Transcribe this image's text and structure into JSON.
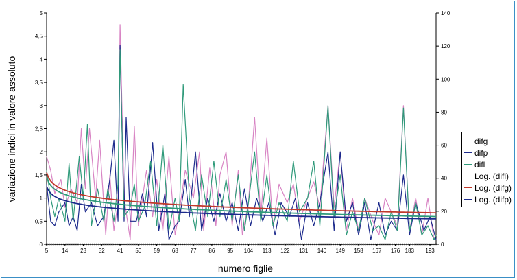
{
  "chart_data": {
    "type": "line",
    "title": "",
    "xlabel": "numero figlie",
    "ylabel": "variazione indici in valore assoluto",
    "x_range": [
      5,
      196
    ],
    "x_ticks": [
      "5",
      "14",
      "23",
      "32",
      "41",
      "50",
      "59",
      "68",
      "77",
      "86",
      "95",
      "104",
      "113",
      "122",
      "131",
      "140",
      "149",
      "158",
      "167",
      "176",
      "183",
      "193"
    ],
    "y_left": {
      "min": 0,
      "max": 5,
      "ticks": [
        "0",
        "0,5",
        "1",
        "1,5",
        "2",
        "2,5",
        "3",
        "3,5",
        "4",
        "4,5",
        "5"
      ]
    },
    "y_right": {
      "min": 0,
      "max": 140,
      "ticks": [
        "0",
        "20",
        "40",
        "60",
        "80",
        "100",
        "120",
        "140"
      ]
    },
    "grid": false,
    "legend_position": "right",
    "series": [
      {
        "name": "difg",
        "color": "#d884c4",
        "axis": "left",
        "peaks": [
          [
            5,
            1.9
          ],
          [
            7,
            1.6
          ],
          [
            9,
            1.1
          ],
          [
            12,
            1.4
          ],
          [
            14,
            0.8
          ],
          [
            17,
            1.2
          ],
          [
            20,
            0.9
          ],
          [
            22,
            2.5
          ],
          [
            24,
            1.2
          ],
          [
            26,
            2.5
          ],
          [
            29,
            1.0
          ],
          [
            31,
            2.25
          ],
          [
            34,
            0.2
          ],
          [
            36,
            1.5
          ],
          [
            38,
            0.3
          ],
          [
            40,
            0.9
          ],
          [
            41,
            4.75
          ],
          [
            43,
            1.0
          ],
          [
            46,
            0.1
          ],
          [
            48,
            2.55
          ],
          [
            50,
            0.4
          ],
          [
            54,
            1.6
          ],
          [
            57,
            0.6
          ],
          [
            59,
            1.4
          ],
          [
            62,
            0.3
          ],
          [
            65,
            1.9
          ],
          [
            68,
            0.2
          ],
          [
            70,
            0.7
          ],
          [
            73,
            1.6
          ],
          [
            77,
            1.0
          ],
          [
            80,
            2.0
          ],
          [
            82,
            0.3
          ],
          [
            85,
            1.65
          ],
          [
            88,
            0.4
          ],
          [
            90,
            1.5
          ],
          [
            93,
            2.0
          ],
          [
            96,
            0.4
          ],
          [
            99,
            1.6
          ],
          [
            101,
            0.2
          ],
          [
            104,
            0.9
          ],
          [
            107,
            2.75
          ],
          [
            110,
            0.6
          ],
          [
            113,
            2.3
          ],
          [
            116,
            0.4
          ],
          [
            119,
            1.3
          ],
          [
            123,
            0.9
          ],
          [
            126,
            1.3
          ],
          [
            129,
            0.5
          ],
          [
            133,
            1.0
          ],
          [
            136,
            1.35
          ],
          [
            139,
            0.8
          ],
          [
            143,
            3.0
          ],
          [
            146,
            0.8
          ],
          [
            149,
            2.0
          ],
          [
            152,
            0.3
          ],
          [
            155,
            1.0
          ],
          [
            158,
            0.3
          ],
          [
            161,
            1.0
          ],
          [
            165,
            0.5
          ],
          [
            168,
            0.2
          ],
          [
            171,
            1.0
          ],
          [
            174,
            0.7
          ],
          [
            177,
            0.4
          ],
          [
            180,
            3.0
          ],
          [
            183,
            0.3
          ],
          [
            186,
            1.0
          ],
          [
            189,
            0.2
          ],
          [
            192,
            1.0
          ],
          [
            195,
            0.1
          ],
          [
            196,
            0.2
          ]
        ]
      },
      {
        "name": "difp",
        "color": "#1c2a8c",
        "axis": "left",
        "peaks": [
          [
            5,
            1.3
          ],
          [
            7,
            0.5
          ],
          [
            9,
            0.4
          ],
          [
            11,
            0.7
          ],
          [
            14,
            0.9
          ],
          [
            16,
            0.4
          ],
          [
            18,
            0.6
          ],
          [
            20,
            0.3
          ],
          [
            22,
            1.3
          ],
          [
            24,
            0.7
          ],
          [
            27,
            0.9
          ],
          [
            30,
            0.4
          ],
          [
            33,
            0.6
          ],
          [
            36,
            1.4
          ],
          [
            38,
            2.25
          ],
          [
            40,
            0.5
          ],
          [
            41,
            4.3
          ],
          [
            43,
            0.5
          ],
          [
            44,
            2.75
          ],
          [
            46,
            0.5
          ],
          [
            49,
            0.5
          ],
          [
            52,
            1.1
          ],
          [
            54,
            0.6
          ],
          [
            57,
            2.2
          ],
          [
            60,
            0.3
          ],
          [
            63,
            1.1
          ],
          [
            65,
            0.1
          ],
          [
            68,
            0.4
          ],
          [
            70,
            0.5
          ],
          [
            73,
            1.4
          ],
          [
            75,
            0.6
          ],
          [
            78,
            2.0
          ],
          [
            81,
            0.3
          ],
          [
            84,
            1.0
          ],
          [
            87,
            0.5
          ],
          [
            90,
            1.1
          ],
          [
            93,
            0.5
          ],
          [
            96,
            0.9
          ],
          [
            99,
            0.3
          ],
          [
            102,
            1.2
          ],
          [
            105,
            0.4
          ],
          [
            108,
            1.0
          ],
          [
            111,
            0.5
          ],
          [
            114,
            0.9
          ],
          [
            117,
            0.2
          ],
          [
            120,
            0.9
          ],
          [
            124,
            0.6
          ],
          [
            127,
            1.0
          ],
          [
            130,
            0.1
          ],
          [
            133,
            0.9
          ],
          [
            136,
            0.4
          ],
          [
            139,
            0.9
          ],
          [
            143,
            2.0
          ],
          [
            146,
            0.3
          ],
          [
            149,
            2.0
          ],
          [
            152,
            0.5
          ],
          [
            155,
            0.9
          ],
          [
            158,
            0.2
          ],
          [
            161,
            0.9
          ],
          [
            164,
            0.1
          ],
          [
            168,
            0.9
          ],
          [
            171,
            0.2
          ],
          [
            174,
            0.5
          ],
          [
            177,
            0.3
          ],
          [
            180,
            1.5
          ],
          [
            183,
            0.2
          ],
          [
            186,
            0.9
          ],
          [
            190,
            0.3
          ],
          [
            193,
            0.6
          ],
          [
            196,
            0.1
          ]
        ]
      },
      {
        "name": "difl",
        "color": "#2f9a7a",
        "axis": "left",
        "peaks": [
          [
            5,
            1.6
          ],
          [
            7,
            1.0
          ],
          [
            9,
            0.6
          ],
          [
            11,
            1.0
          ],
          [
            14,
            0.5
          ],
          [
            16,
            1.75
          ],
          [
            18,
            0.5
          ],
          [
            21,
            1.9
          ],
          [
            23,
            1.0
          ],
          [
            25,
            2.6
          ],
          [
            27,
            0.4
          ],
          [
            30,
            1.2
          ],
          [
            33,
            0.5
          ],
          [
            35,
            1.2
          ],
          [
            38,
            0.5
          ],
          [
            40,
            1.3
          ],
          [
            41,
            4.2
          ],
          [
            43,
            0.6
          ],
          [
            46,
            0.8
          ],
          [
            48,
            1.3
          ],
          [
            50,
            0.5
          ],
          [
            53,
            0.8
          ],
          [
            56,
            1.8
          ],
          [
            59,
            0.4
          ],
          [
            62,
            2.15
          ],
          [
            65,
            0.3
          ],
          [
            68,
            1.0
          ],
          [
            70,
            0.5
          ],
          [
            72,
            3.45
          ],
          [
            75,
            1.0
          ],
          [
            78,
            0.3
          ],
          [
            81,
            1.5
          ],
          [
            84,
            0.6
          ],
          [
            87,
            1.8
          ],
          [
            90,
            0.6
          ],
          [
            93,
            1.4
          ],
          [
            96,
            0.5
          ],
          [
            99,
            1.5
          ],
          [
            102,
            0.3
          ],
          [
            104,
            0.9
          ],
          [
            107,
            2.0
          ],
          [
            110,
            0.5
          ],
          [
            113,
            1.5
          ],
          [
            116,
            0.4
          ],
          [
            119,
            0.9
          ],
          [
            123,
            0.5
          ],
          [
            126,
            1.8
          ],
          [
            129,
            0.7
          ],
          [
            133,
            1.0
          ],
          [
            136,
            1.8
          ],
          [
            139,
            0.4
          ],
          [
            143,
            3.0
          ],
          [
            146,
            0.6
          ],
          [
            149,
            1.5
          ],
          [
            152,
            0.2
          ],
          [
            155,
            0.7
          ],
          [
            158,
            0.3
          ],
          [
            161,
            1.0
          ],
          [
            165,
            0.3
          ],
          [
            168,
            0.4
          ],
          [
            171,
            0.1
          ],
          [
            174,
            0.7
          ],
          [
            177,
            0.3
          ],
          [
            180,
            2.95
          ],
          [
            183,
            0.3
          ],
          [
            186,
            0.9
          ],
          [
            189,
            0.2
          ],
          [
            192,
            0.4
          ],
          [
            195,
            0.1
          ],
          [
            196,
            0.2
          ]
        ]
      },
      {
        "name": "Log. (difl)",
        "color": "#2f9a7a",
        "axis": "left",
        "trend": "log",
        "y_at_start": 1.45,
        "y_at_end": 0.6
      },
      {
        "name": "Log. (difg)",
        "color": "#c0392b",
        "axis": "left",
        "trend": "log",
        "y_at_start": 1.55,
        "y_at_end": 0.68
      },
      {
        "name": "Log. (difp)",
        "color": "#1c2a8c",
        "axis": "left",
        "trend": "log",
        "y_at_start": 1.25,
        "y_at_end": 0.55
      }
    ]
  }
}
